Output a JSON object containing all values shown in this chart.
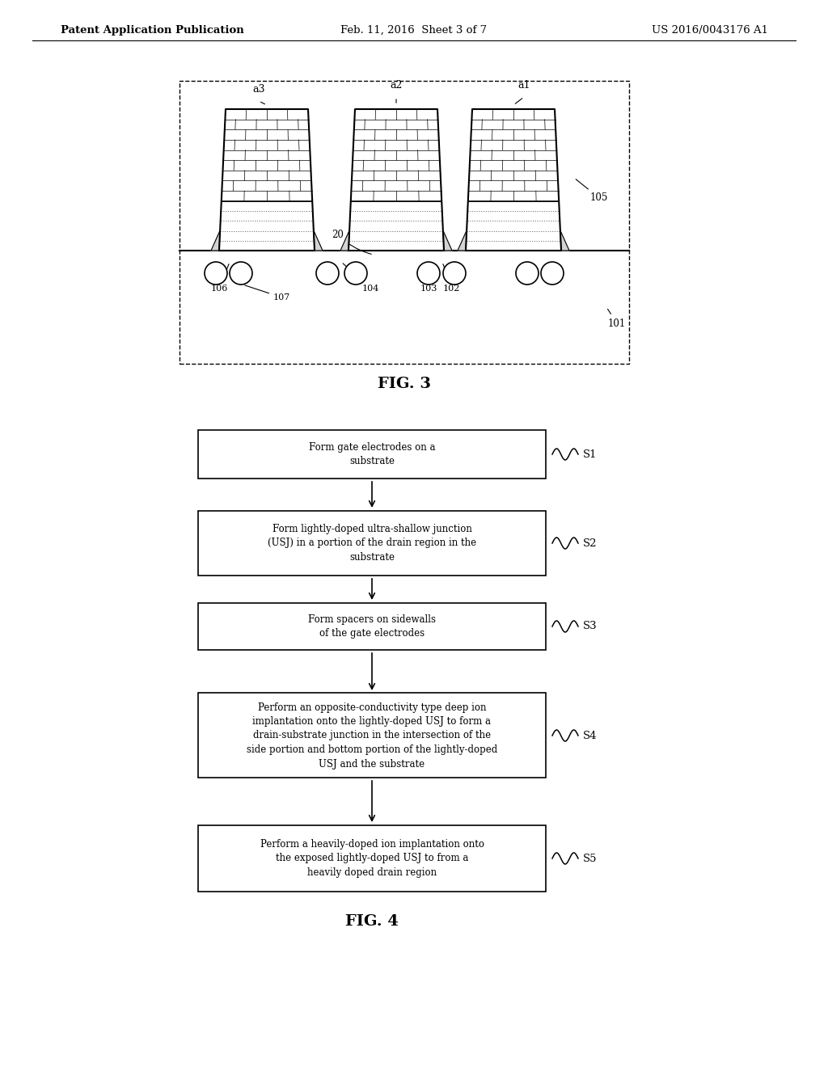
{
  "header_left": "Patent Application Publication",
  "header_center": "Feb. 11, 2016  Sheet 3 of 7",
  "header_right": "US 2016/0043176 A1",
  "fig3_label": "FIG. 3",
  "fig4_label": "FIG. 4",
  "background_color": "#ffffff",
  "text_color": "#000000",
  "flowchart_steps": [
    {
      "id": "S1",
      "text": "Form gate electrodes on a\nsubstrate"
    },
    {
      "id": "S2",
      "text": "Form lightly-doped ultra-shallow junction\n(USJ) in a portion of the drain region in the\nsubstrate"
    },
    {
      "id": "S3",
      "text": "Form spacers on sidewalls\nof the gate electrodes"
    },
    {
      "id": "S4",
      "text": "Perform an opposite-conductivity type deep ion\nimplantation onto the lightly-doped USJ to form a\ndrain-substrate junction in the intersection of the\nside portion and bottom portion of the lightly-doped\nUSJ and the substrate"
    },
    {
      "id": "S5",
      "text": "Perform a heavily-doped ion implantation onto\nthe exposed lightly-doped USJ to from a\nheavily doped drain region"
    }
  ]
}
